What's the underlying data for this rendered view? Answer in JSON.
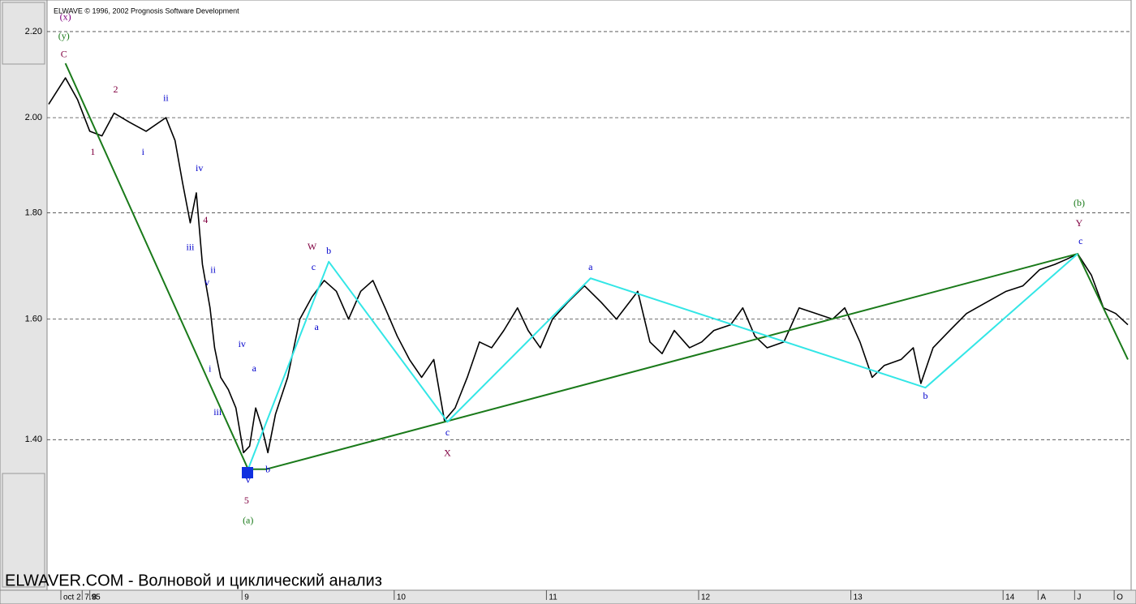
{
  "chart_data": {
    "type": "line",
    "title": "ELWAVE © 1996, 2002 Prognosis Software Development",
    "subtitle": "ELWAVER.COM - Волновой и циклический анализ",
    "ylog": true,
    "grid": true,
    "xlim": [
      7.73,
      14.82
    ],
    "ylim": [
      1.185,
      2.262
    ],
    "xticks": [
      {
        "value": 7.81,
        "label": "oct 2"
      },
      7.95,
      8,
      9,
      10,
      11,
      12,
      13,
      14,
      {
        "value": 14.23,
        "label": "A"
      },
      {
        "value": 14.47,
        "label": "J"
      },
      {
        "value": 14.73,
        "label": "O"
      }
    ],
    "yticks": [
      {
        "value": 1.4,
        "label": "1.40"
      },
      {
        "value": 1.6,
        "label": "1.60"
      },
      {
        "value": 1.8,
        "label": "1.80"
      },
      {
        "value": 2.0,
        "label": "2.00"
      },
      {
        "value": 2.2,
        "label": "2.20"
      }
    ],
    "series": [
      {
        "color": "#000000",
        "x": [
          7.73,
          7.84,
          7.92,
          8.0,
          8.08,
          8.16,
          8.26,
          8.37,
          8.5,
          8.56,
          8.61,
          8.66,
          8.7,
          8.74,
          8.79,
          8.82,
          8.86,
          8.91,
          8.96,
          9.01,
          9.05,
          9.09,
          9.13,
          9.17,
          9.22,
          9.3,
          9.38,
          9.46,
          9.54,
          9.62,
          9.7,
          9.78,
          9.86,
          9.94,
          10.02,
          10.1,
          10.18,
          10.26,
          10.33,
          10.4,
          10.48,
          10.56,
          10.64,
          10.72,
          10.81,
          10.88,
          10.96,
          11.04,
          11.14,
          11.25,
          11.36,
          11.46,
          11.6,
          11.68,
          11.76,
          11.84,
          11.94,
          12.02,
          12.1,
          12.21,
          12.29,
          12.37,
          12.45,
          12.56,
          12.66,
          12.77,
          12.88,
          12.96,
          13.06,
          13.14,
          13.22,
          13.33,
          13.41,
          13.46,
          13.54,
          13.65,
          13.76,
          13.89,
          14.02,
          14.13,
          14.24,
          14.34,
          14.42,
          14.49,
          14.58,
          14.66,
          14.74,
          14.82
        ],
        "values": [
          2.03,
          2.09,
          2.04,
          1.97,
          1.96,
          2.01,
          1.99,
          1.97,
          2.0,
          1.95,
          1.86,
          1.78,
          1.84,
          1.7,
          1.62,
          1.55,
          1.5,
          1.48,
          1.45,
          1.38,
          1.39,
          1.45,
          1.42,
          1.38,
          1.44,
          1.5,
          1.6,
          1.64,
          1.67,
          1.65,
          1.6,
          1.65,
          1.67,
          1.62,
          1.57,
          1.53,
          1.5,
          1.53,
          1.43,
          1.45,
          1.5,
          1.56,
          1.55,
          1.58,
          1.62,
          1.58,
          1.55,
          1.6,
          1.63,
          1.66,
          1.63,
          1.6,
          1.65,
          1.56,
          1.54,
          1.58,
          1.55,
          1.56,
          1.58,
          1.59,
          1.62,
          1.57,
          1.55,
          1.56,
          1.62,
          1.61,
          1.6,
          1.62,
          1.56,
          1.5,
          1.52,
          1.53,
          1.55,
          1.49,
          1.55,
          1.58,
          1.61,
          1.63,
          1.65,
          1.66,
          1.69,
          1.7,
          1.71,
          1.72,
          1.68,
          1.62,
          1.61,
          1.59
        ]
      },
      {
        "color": "#1a7a1a",
        "x": [
          7.84,
          9.04,
          9.16,
          14.49,
          14.82
        ],
        "values": [
          2.124,
          1.355,
          1.355,
          1.72,
          1.53
        ]
      },
      {
        "color": "#33e6e6",
        "x": [
          9.04,
          9.57,
          10.35,
          11.29,
          13.49,
          14.49
        ],
        "values": [
          1.355,
          1.705,
          1.428,
          1.674,
          1.483,
          1.72
        ]
      }
    ],
    "annotations": [
      {
        "text": "(x)",
        "x": 7.84,
        "y": 2.234,
        "color": "#800080"
      },
      {
        "text": "(y)",
        "x": 7.83,
        "y": 2.188,
        "color": "#1a7a1a"
      },
      {
        "text": "C",
        "x": 7.83,
        "y": 2.144,
        "color": "#800040"
      },
      {
        "text": "2",
        "x": 8.17,
        "y": 2.062,
        "color": "#800040"
      },
      {
        "text": "1",
        "x": 8.02,
        "y": 1.924,
        "color": "#800040"
      },
      {
        "text": "ii",
        "x": 8.5,
        "y": 2.042,
        "color": "#0000cc"
      },
      {
        "text": "i",
        "x": 8.35,
        "y": 1.924,
        "color": "#0000cc"
      },
      {
        "text": "iv",
        "x": 8.72,
        "y": 1.89,
        "color": "#0000cc"
      },
      {
        "text": "4",
        "x": 8.76,
        "y": 1.784,
        "color": "#800040"
      },
      {
        "text": "iii",
        "x": 8.66,
        "y": 1.731,
        "color": "#0000cc"
      },
      {
        "text": "ii",
        "x": 8.81,
        "y": 1.688,
        "color": "#0000cc"
      },
      {
        "text": "v",
        "x": 8.77,
        "y": 1.665,
        "color": "#0000cc"
      },
      {
        "text": "i",
        "x": 8.79,
        "y": 1.513,
        "color": "#0000cc"
      },
      {
        "text": "iii",
        "x": 8.84,
        "y": 1.442,
        "color": "#0000cc"
      },
      {
        "text": "iv",
        "x": 9.0,
        "y": 1.555,
        "color": "#0000cc"
      },
      {
        "text": "a",
        "x": 9.08,
        "y": 1.514,
        "color": "#0000cc"
      },
      {
        "text": "v",
        "x": 9.04,
        "y": 1.338,
        "color": "#0000cc"
      },
      {
        "text": "b",
        "x": 9.17,
        "y": 1.354,
        "color": "#0000cc"
      },
      {
        "text": "5",
        "x": 9.03,
        "y": 1.308,
        "color": "#800040"
      },
      {
        "text": "(a)",
        "x": 9.04,
        "y": 1.279,
        "color": "#1a7a1a"
      },
      {
        "text": "W",
        "x": 9.46,
        "y": 1.732,
        "color": "#800040"
      },
      {
        "text": "b",
        "x": 9.57,
        "y": 1.724,
        "color": "#0000cc"
      },
      {
        "text": "c",
        "x": 9.47,
        "y": 1.694,
        "color": "#0000cc"
      },
      {
        "text": "a",
        "x": 9.49,
        "y": 1.585,
        "color": "#0000cc"
      },
      {
        "text": "c",
        "x": 10.35,
        "y": 1.41,
        "color": "#0000cc"
      },
      {
        "text": "X",
        "x": 10.35,
        "y": 1.378,
        "color": "#800040"
      },
      {
        "text": "a",
        "x": 11.29,
        "y": 1.694,
        "color": "#0000cc"
      },
      {
        "text": "b",
        "x": 13.49,
        "y": 1.468,
        "color": "#0000cc"
      },
      {
        "text": "c",
        "x": 14.51,
        "y": 1.743,
        "color": "#0000cc"
      },
      {
        "text": "Y",
        "x": 14.5,
        "y": 1.778,
        "color": "#800040"
      },
      {
        "text": "(b)",
        "x": 14.5,
        "y": 1.818,
        "color": "#1a7a1a"
      }
    ]
  }
}
